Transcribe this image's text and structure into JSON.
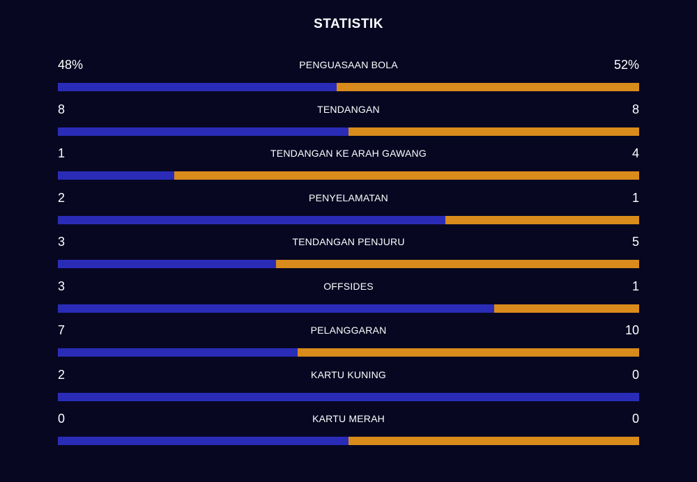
{
  "title": "STATISTIK",
  "colors": {
    "background": "#070722",
    "home_bar": "#2a2cb8",
    "away_bar": "#d98b1b",
    "text": "#ffffff"
  },
  "stats": [
    {
      "label": "PENGUASAAN BOLA",
      "home": "48%",
      "away": "52%",
      "home_share": 0.48
    },
    {
      "label": "TENDANGAN",
      "home": "8",
      "away": "8",
      "home_share": 0.5
    },
    {
      "label": "TENDANGAN KE ARAH GAWANG",
      "home": "1",
      "away": "4",
      "home_share": 0.2
    },
    {
      "label": "PENYELAMATAN",
      "home": "2",
      "away": "1",
      "home_share": 0.667
    },
    {
      "label": "TENDANGAN PENJURU",
      "home": "3",
      "away": "5",
      "home_share": 0.375
    },
    {
      "label": "OFFSIDES",
      "home": "3",
      "away": "1",
      "home_share": 0.75
    },
    {
      "label": "PELANGGARAN",
      "home": "7",
      "away": "10",
      "home_share": 0.412
    },
    {
      "label": "KARTU KUNING",
      "home": "2",
      "away": "0",
      "home_share": 1.0
    },
    {
      "label": "KARTU MERAH",
      "home": "0",
      "away": "0",
      "home_share": 0.5
    }
  ]
}
